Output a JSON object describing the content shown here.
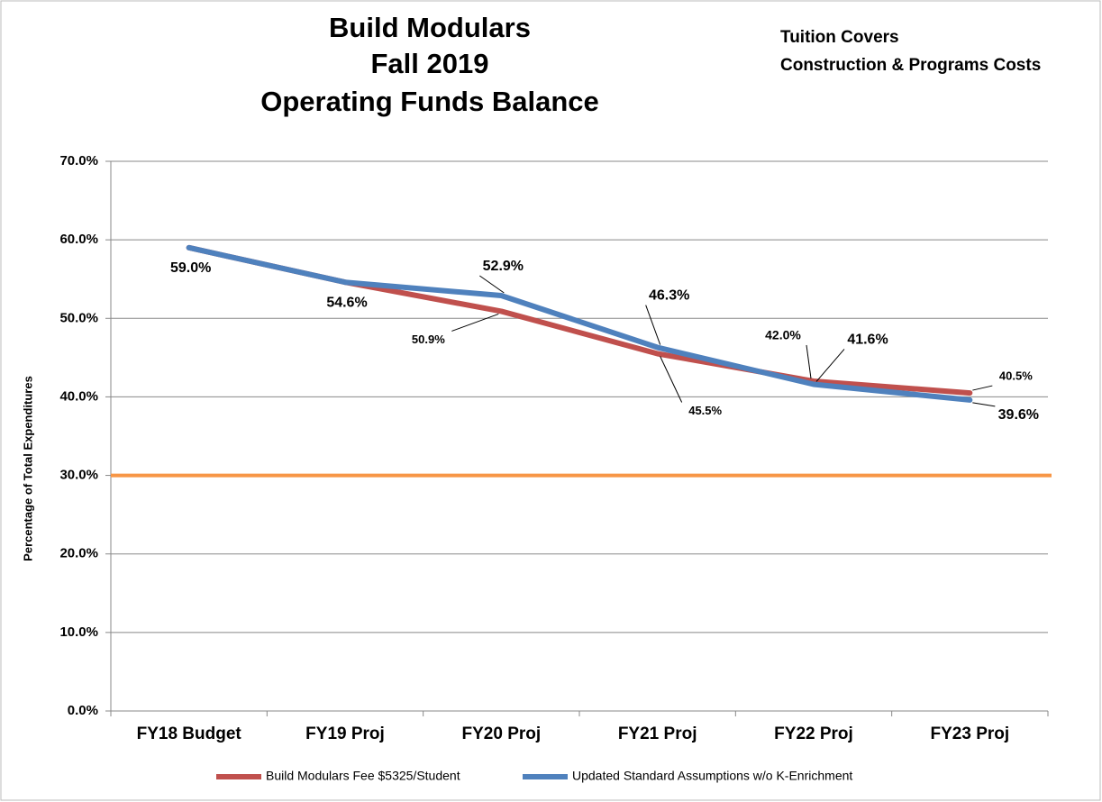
{
  "chart_data": {
    "type": "line",
    "title": [
      "Build Modulars",
      "Fall 2019",
      "Operating Funds Balance"
    ],
    "annotation": [
      "Tuition Covers",
      "Construction & Programs Costs"
    ],
    "y_label": "Percentage of Total Expenditures",
    "categories": [
      "FY18 Budget",
      "FY19 Proj",
      "FY20 Proj",
      "FY21 Proj",
      "FY22 Proj",
      "FY23 Proj"
    ],
    "series": [
      {
        "name": "Build Modulars Fee $5325/Student",
        "color": "#c0504d",
        "values": [
          59.0,
          54.6,
          50.9,
          45.5,
          42.0,
          40.5
        ],
        "value_labels": [
          null,
          null,
          "50.9%",
          "45.5%",
          "42.0%",
          "40.5%"
        ]
      },
      {
        "name": "Updated Standard Assumptions w/o K-Enrichment",
        "color": "#4f81bd",
        "values": [
          59.0,
          54.6,
          52.9,
          46.3,
          41.6,
          39.6
        ],
        "value_labels": [
          "59.0%",
          "54.6%",
          "52.9%",
          "46.3%",
          "41.6%",
          "39.6%"
        ]
      }
    ],
    "reference_line": {
      "value": 30,
      "color": "#f79646"
    },
    "ylim": [
      0,
      70
    ],
    "yticks": [
      {
        "value": 0,
        "label": "0.0%"
      },
      {
        "value": 10,
        "label": "10.0%"
      },
      {
        "value": 20,
        "label": "20.0%"
      },
      {
        "value": 30,
        "label": "30.0%"
      },
      {
        "value": 40,
        "label": "40.0%"
      },
      {
        "value": 50,
        "label": "50.0%"
      },
      {
        "value": 60,
        "label": "60.0%"
      },
      {
        "value": 70,
        "label": "70.0%"
      }
    ],
    "grid": true,
    "legend": "bottom"
  }
}
